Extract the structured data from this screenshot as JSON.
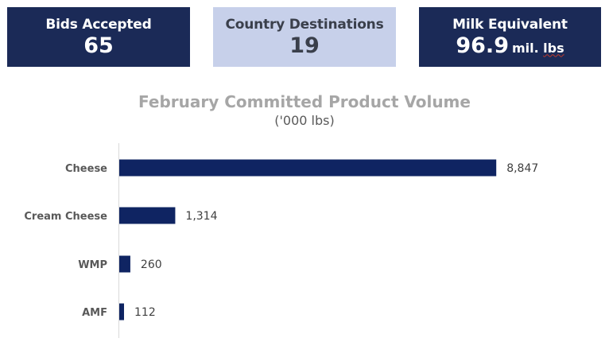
{
  "kpis": {
    "bids": {
      "label": "Bids Accepted",
      "value": "65"
    },
    "countries": {
      "label": "Country Destinations",
      "value": "19"
    },
    "milk": {
      "label": "Milk Equivalent",
      "value": "96.9",
      "unit_prefix": "mil.",
      "unit_suffix": "lbs"
    }
  },
  "colors": {
    "kpi_dark": "#1b2a57",
    "kpi_light": "#c7d0ea",
    "bar": "#0f2462",
    "title": "#a6a6a6"
  },
  "chart_data": {
    "type": "bar",
    "orientation": "horizontal",
    "title": "February Committed Product Volume",
    "subtitle": "('000 lbs)",
    "categories": [
      "Cheese",
      "Cream Cheese",
      "WMP",
      "AMF"
    ],
    "values": [
      8847,
      1314,
      260,
      112
    ],
    "value_labels": [
      "8,847",
      "1,314",
      "260",
      "112"
    ],
    "xlim": [
      0,
      10000
    ],
    "grid": false,
    "legend": "none"
  }
}
